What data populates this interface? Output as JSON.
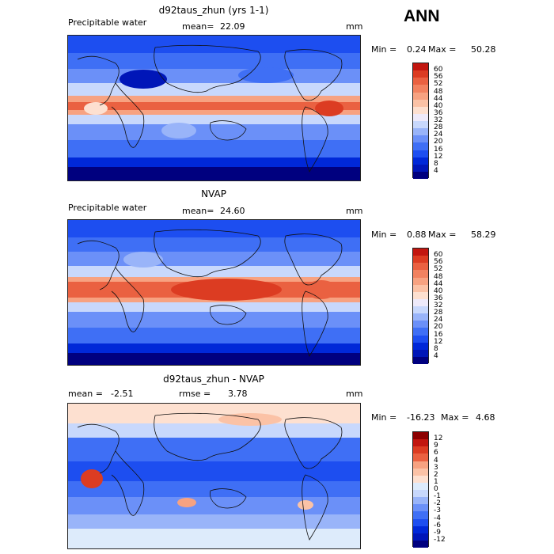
{
  "season": "ANN",
  "colors": {
    "temperature_scale": [
      "#00007f",
      "#0016b8",
      "#0028d8",
      "#1d4ef0",
      "#3f6ff5",
      "#6b90f8",
      "#99b4f9",
      "#c8d8fc",
      "#eeeafa",
      "#fde0d0",
      "#fbc2a6",
      "#f7a281",
      "#f28260",
      "#ea6141",
      "#dc3c22",
      "#c2160f",
      "#8c0000"
    ],
    "diff_scale": [
      "#00007f",
      "#0016b8",
      "#0028d8",
      "#1d4ef0",
      "#3f6ff5",
      "#6b90f8",
      "#99b4f9",
      "#c8d8fc",
      "#ddebfb",
      "#fde0d0",
      "#fbc2a6",
      "#f7a281",
      "#ea6141",
      "#dc3c22",
      "#c2160f",
      "#8c0000"
    ]
  },
  "chart_data": [
    {
      "type": "heatmap",
      "title": "d92taus_zhun (yrs 1-1)",
      "variable": "Precipitable water",
      "mean_label": "mean=",
      "mean": "22.09",
      "units": "mm",
      "min_label": "Min =",
      "min": "0.24",
      "max_label": "Max =",
      "max": "50.28",
      "colorbar_levels": [
        "4",
        "8",
        "12",
        "16",
        "20",
        "24",
        "28",
        "32",
        "36",
        "40",
        "44",
        "48",
        "52",
        "56",
        "60"
      ]
    },
    {
      "type": "heatmap",
      "title": "NVAP",
      "variable": "Precipitable water",
      "mean_label": "mean=",
      "mean": "24.60",
      "units": "mm",
      "min_label": "Min =",
      "min": "0.88",
      "max_label": "Max =",
      "max": "58.29",
      "colorbar_levels": [
        "4",
        "8",
        "12",
        "16",
        "20",
        "24",
        "28",
        "32",
        "36",
        "40",
        "44",
        "48",
        "52",
        "56",
        "60"
      ]
    },
    {
      "type": "heatmap",
      "title": "d92taus_zhun - NVAP",
      "mean_label": "mean =",
      "mean": "-2.51",
      "rmse_label": "rmse =",
      "rmse": "3.78",
      "units": "mm",
      "min_label": "Min =",
      "min": "-16.23",
      "max_label": "Max =",
      "max": "4.68",
      "colorbar_levels": [
        "-12",
        "-9",
        "-6",
        "-4",
        "-3",
        "-2",
        "-1",
        "0",
        "1",
        "2",
        "3",
        "4",
        "6",
        "9",
        "12"
      ]
    }
  ]
}
